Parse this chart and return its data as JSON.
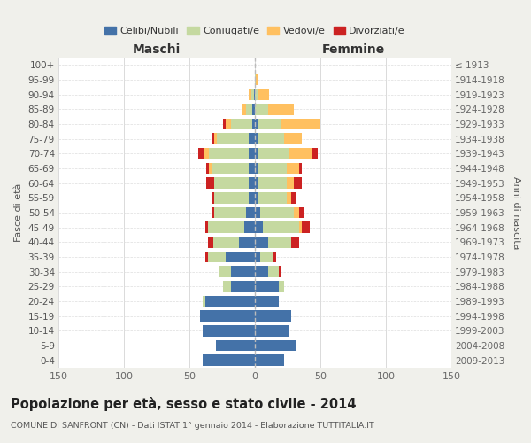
{
  "age_groups": [
    "100+",
    "95-99",
    "90-94",
    "85-89",
    "80-84",
    "75-79",
    "70-74",
    "65-69",
    "60-64",
    "55-59",
    "50-54",
    "45-49",
    "40-44",
    "35-39",
    "30-34",
    "25-29",
    "20-24",
    "15-19",
    "10-14",
    "5-9",
    "0-4"
  ],
  "birth_years": [
    "≤ 1913",
    "1914-1918",
    "1919-1923",
    "1924-1928",
    "1929-1933",
    "1934-1938",
    "1939-1943",
    "1944-1948",
    "1949-1953",
    "1954-1958",
    "1959-1963",
    "1964-1968",
    "1969-1973",
    "1974-1978",
    "1979-1983",
    "1984-1988",
    "1989-1993",
    "1994-1998",
    "1999-2003",
    "2004-2008",
    "2009-2013"
  ],
  "maschi": {
    "celibi": [
      0,
      0,
      1,
      2,
      2,
      5,
      5,
      5,
      5,
      5,
      7,
      8,
      12,
      22,
      18,
      18,
      38,
      42,
      40,
      30,
      40
    ],
    "coniugati": [
      0,
      0,
      2,
      5,
      16,
      24,
      30,
      28,
      26,
      26,
      24,
      28,
      20,
      14,
      10,
      6,
      2,
      0,
      0,
      0,
      0
    ],
    "vedovi": [
      0,
      0,
      2,
      3,
      4,
      2,
      4,
      2,
      0,
      0,
      0,
      0,
      0,
      0,
      0,
      0,
      0,
      0,
      0,
      0,
      0
    ],
    "divorziati": [
      0,
      0,
      0,
      0,
      2,
      2,
      4,
      2,
      6,
      2,
      2,
      2,
      4,
      2,
      0,
      0,
      0,
      0,
      0,
      0,
      0
    ]
  },
  "femmine": {
    "nubili": [
      0,
      0,
      0,
      0,
      2,
      2,
      2,
      2,
      2,
      2,
      4,
      6,
      10,
      4,
      10,
      18,
      18,
      28,
      26,
      32,
      22
    ],
    "coniugate": [
      0,
      1,
      3,
      10,
      18,
      20,
      24,
      22,
      22,
      22,
      26,
      28,
      18,
      10,
      8,
      4,
      0,
      0,
      0,
      0,
      0
    ],
    "vedove": [
      0,
      2,
      8,
      20,
      30,
      14,
      18,
      10,
      6,
      4,
      4,
      2,
      0,
      0,
      0,
      0,
      0,
      0,
      0,
      0,
      0
    ],
    "divorziate": [
      0,
      0,
      0,
      0,
      0,
      0,
      4,
      2,
      6,
      4,
      4,
      6,
      6,
      2,
      2,
      0,
      0,
      0,
      0,
      0,
      0
    ]
  },
  "colors": {
    "celibi": "#4472a8",
    "coniugati": "#c5d9a0",
    "vedovi": "#ffc060",
    "divorziati": "#cc2222"
  },
  "xlim": 150,
  "title": "Popolazione per età, sesso e stato civile - 2014",
  "subtitle": "COMUNE DI SANFRONT (CN) - Dati ISTAT 1° gennaio 2014 - Elaborazione TUTTITALIA.IT",
  "ylabel_left": "Fasce di età",
  "ylabel_right": "Anni di nascita",
  "xlabel_maschi": "Maschi",
  "xlabel_femmine": "Femmine",
  "bg_color": "#f0f0eb",
  "plot_bg": "#ffffff"
}
